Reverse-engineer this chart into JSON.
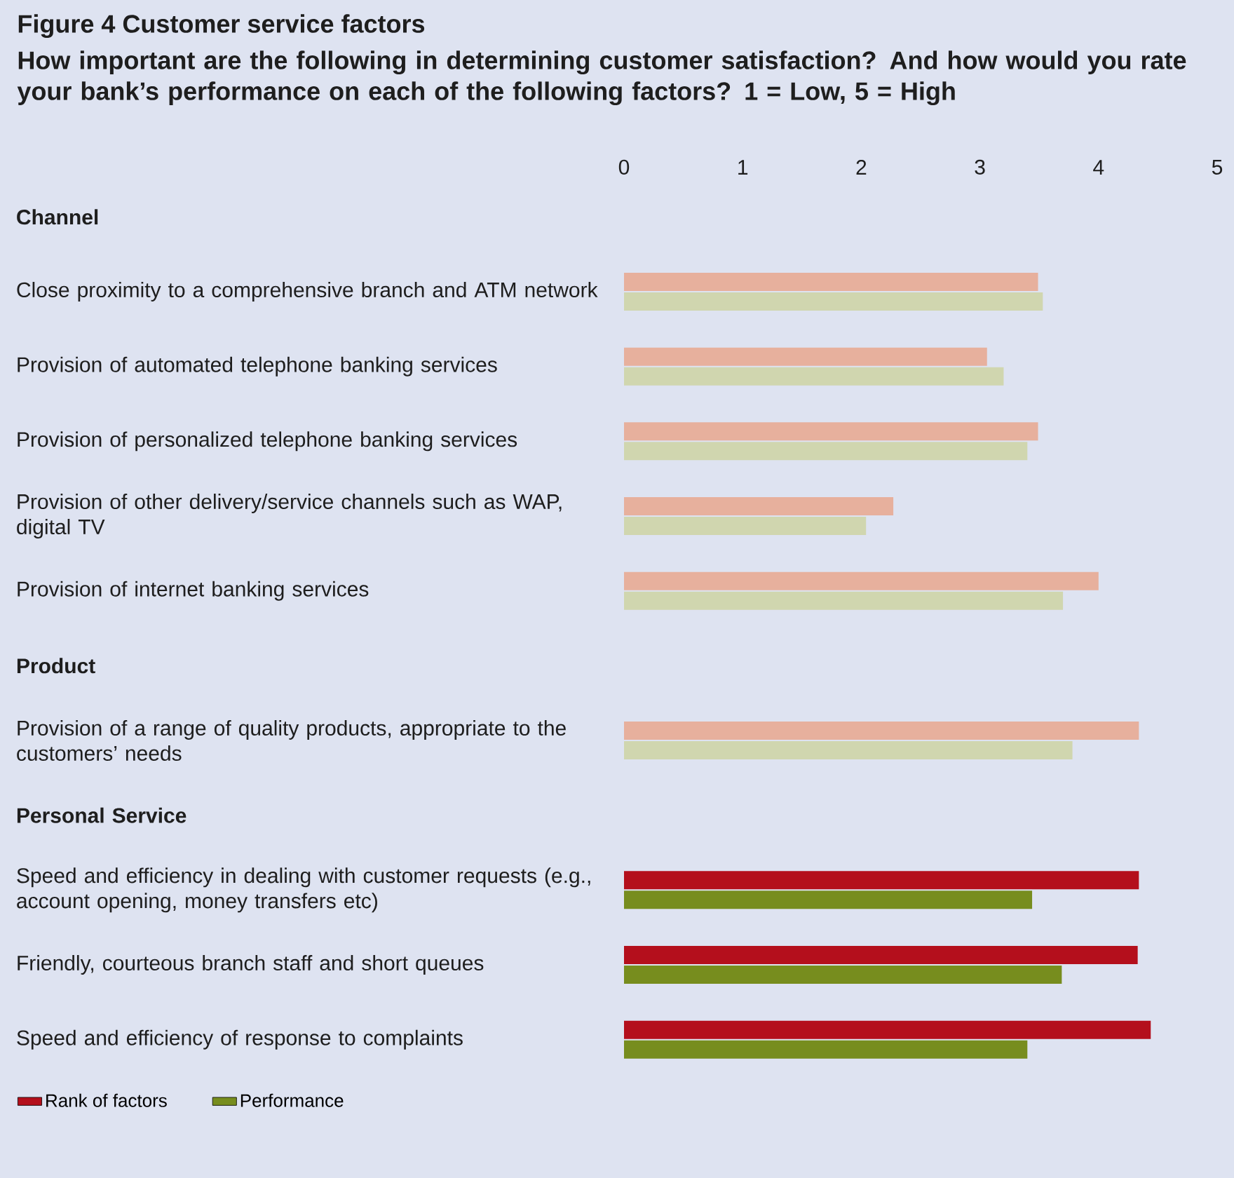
{
  "chart_data": {
    "type": "bar",
    "orientation": "horizontal",
    "title": "Figure 4 Customer service factors",
    "subtitle": "How important are the following in determining customer satisfaction? And how would you rate your bank’s performance on each of the following factors? 1 = Low, 5 = High",
    "categories": [
      "Channel",
      "Close proximity to a comprehensive branch and ATM network",
      "Provision of automated telephone banking services",
      "Provision of personalized telephone banking services",
      "Provision of other delivery/service channels such as WAP, digital TV",
      "Provision of internet banking services",
      "Product",
      "Provision of a range of quality products, appropriate to the customers’ needs",
      "Personal Service",
      "Speed and efficiency in dealing with customer requests (e.g., account opening, money transfers etc)",
      "Friendly, courteous branch staff and short queues",
      "Speed and efficiency of response to complaints"
    ],
    "series": [
      {
        "name": "Rank of factors",
        "color": "#b40f1c",
        "colors": [
          null,
          "#e7b09d",
          "#e7b09d",
          "#e7b09d",
          "#e7b09d",
          "#e7b09d",
          null,
          "#e7b09d",
          null,
          "#b40f1c",
          "#b40f1c",
          "#b40f1c"
        ],
        "values": [
          null,
          3.49,
          3.06,
          3.49,
          2.27,
          4.0,
          null,
          4.34,
          null,
          4.34,
          4.33,
          4.44
        ]
      },
      {
        "name": "Performance",
        "color": "#778d1e",
        "colors": [
          null,
          "#d0d6af",
          "#d0d6af",
          "#d0d6af",
          "#d0d6af",
          "#d0d6af",
          null,
          "#d0d6af",
          null,
          "#778d1e",
          "#778d1e",
          "#778d1e"
        ],
        "values": [
          null,
          3.53,
          3.2,
          3.4,
          2.04,
          3.7,
          null,
          3.78,
          null,
          3.44,
          3.69,
          3.4
        ]
      }
    ],
    "xlim": [
      0,
      5
    ],
    "xticks": [
      0,
      1,
      2,
      3,
      4,
      5
    ],
    "legend": "bottom left"
  }
}
